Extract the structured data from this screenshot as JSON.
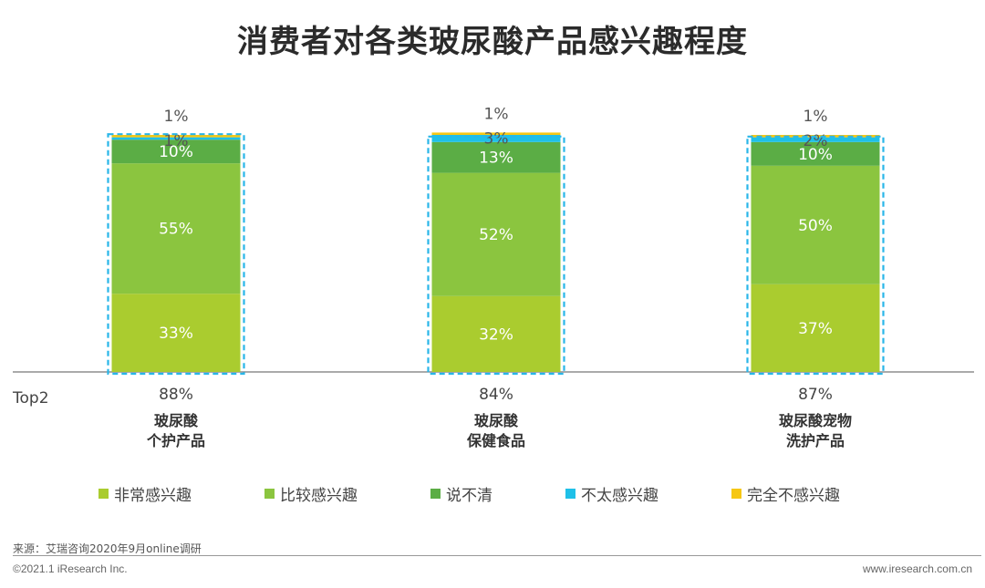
{
  "chart_data": {
    "type": "bar",
    "stacked": true,
    "title": "消费者对各类玻尿酸产品感兴趣程度",
    "categories": [
      [
        "玻尿酸",
        "个护产品"
      ],
      [
        "玻尿酸",
        "保健食品"
      ],
      [
        "玻尿酸宠物",
        "洗护产品"
      ]
    ],
    "series": [
      {
        "name": "非常感兴趣",
        "color": "#AACC2F",
        "values": [
          33,
          32,
          37
        ],
        "labels": [
          "33%",
          "32%",
          "37%"
        ]
      },
      {
        "name": "比较感兴趣",
        "color": "#8BC53F",
        "values": [
          55,
          52,
          50
        ],
        "labels": [
          "55%",
          "52%",
          "50%"
        ]
      },
      {
        "name": "说不清",
        "color": "#5BAD45",
        "values": [
          10,
          13,
          10
        ],
        "labels": [
          "10%",
          "13%",
          "10%"
        ]
      },
      {
        "name": "不太感兴趣",
        "color": "#1FC0E8",
        "values": [
          1,
          3,
          2
        ],
        "labels": [
          "1%",
          "3%",
          "2%"
        ]
      },
      {
        "name": "完全不感兴趣",
        "color": "#F6C714",
        "values": [
          1,
          1,
          1
        ],
        "labels": [
          "1%",
          "1%",
          "1%"
        ]
      }
    ],
    "top2_label": "Top2",
    "top2": [
      "88%",
      "84%",
      "87%"
    ],
    "ylim": [
      0,
      100
    ],
    "highlight_color": "#29B6E8"
  },
  "footer": {
    "source": "来源：艾瑞咨询2020年9月online调研",
    "copyright": "©2021.1 iResearch Inc.",
    "website": "www.iresearch.com.cn"
  }
}
